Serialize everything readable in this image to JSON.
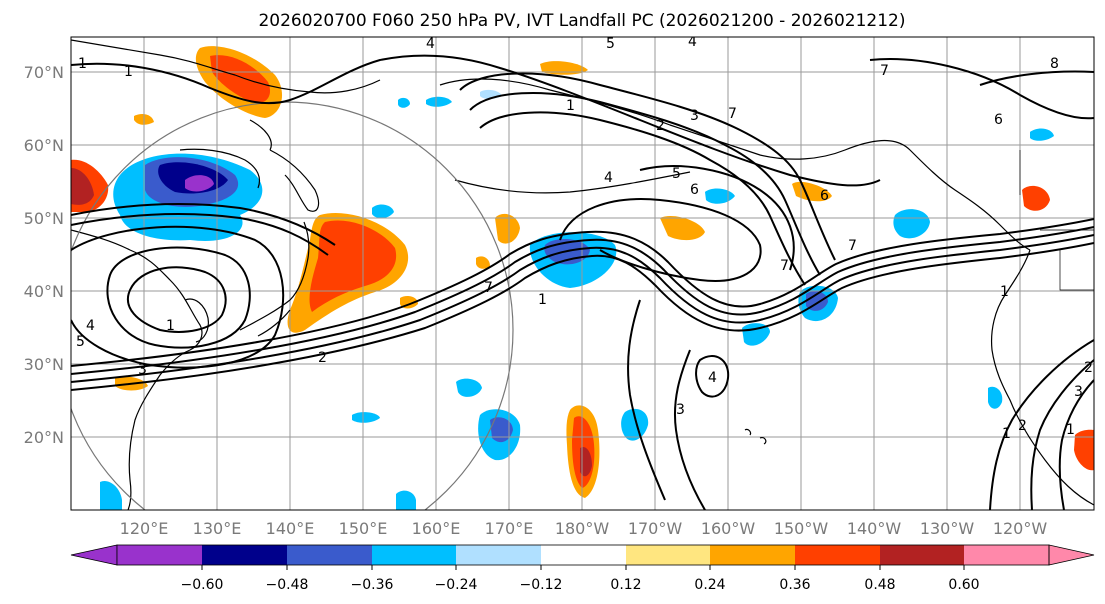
{
  "title": "2026020700 F060 250 hPa PV, IVT Landfall PC (2026021200 - 2026021212)",
  "map": {
    "lat_labels": [
      "70°N",
      "60°N",
      "50°N",
      "40°N",
      "30°N",
      "20°N"
    ],
    "lon_labels": [
      "120°E",
      "130°E",
      "140°E",
      "150°E",
      "160°E",
      "170°E",
      "180°W",
      "170°W",
      "160°W",
      "150°W",
      "140°W",
      "130°W",
      "120°W"
    ],
    "pv_contour_labels": [
      "4",
      "5",
      "4",
      "7",
      "8",
      "1",
      "2",
      "3",
      "7",
      "6",
      "4",
      "5",
      "6",
      "6",
      "7",
      "7",
      "1",
      "7",
      "1",
      "1",
      "1",
      "4",
      "5",
      "3",
      "1",
      "2",
      "3",
      "4",
      "3",
      "1",
      "2",
      "1",
      "2"
    ]
  },
  "colorbar": {
    "ticks": [
      "−0.60",
      "−0.48",
      "−0.36",
      "−0.24",
      "−0.12",
      "0.12",
      "0.24",
      "0.36",
      "0.48",
      "0.60"
    ],
    "colors": [
      "#9932CC",
      "#00008B",
      "#3A5BCC",
      "#00BFFF",
      "#B0E0FF",
      "#FFFFFF",
      "#FFE680",
      "#FFA500",
      "#FF4000",
      "#B22222",
      "#FF88AA"
    ]
  }
}
